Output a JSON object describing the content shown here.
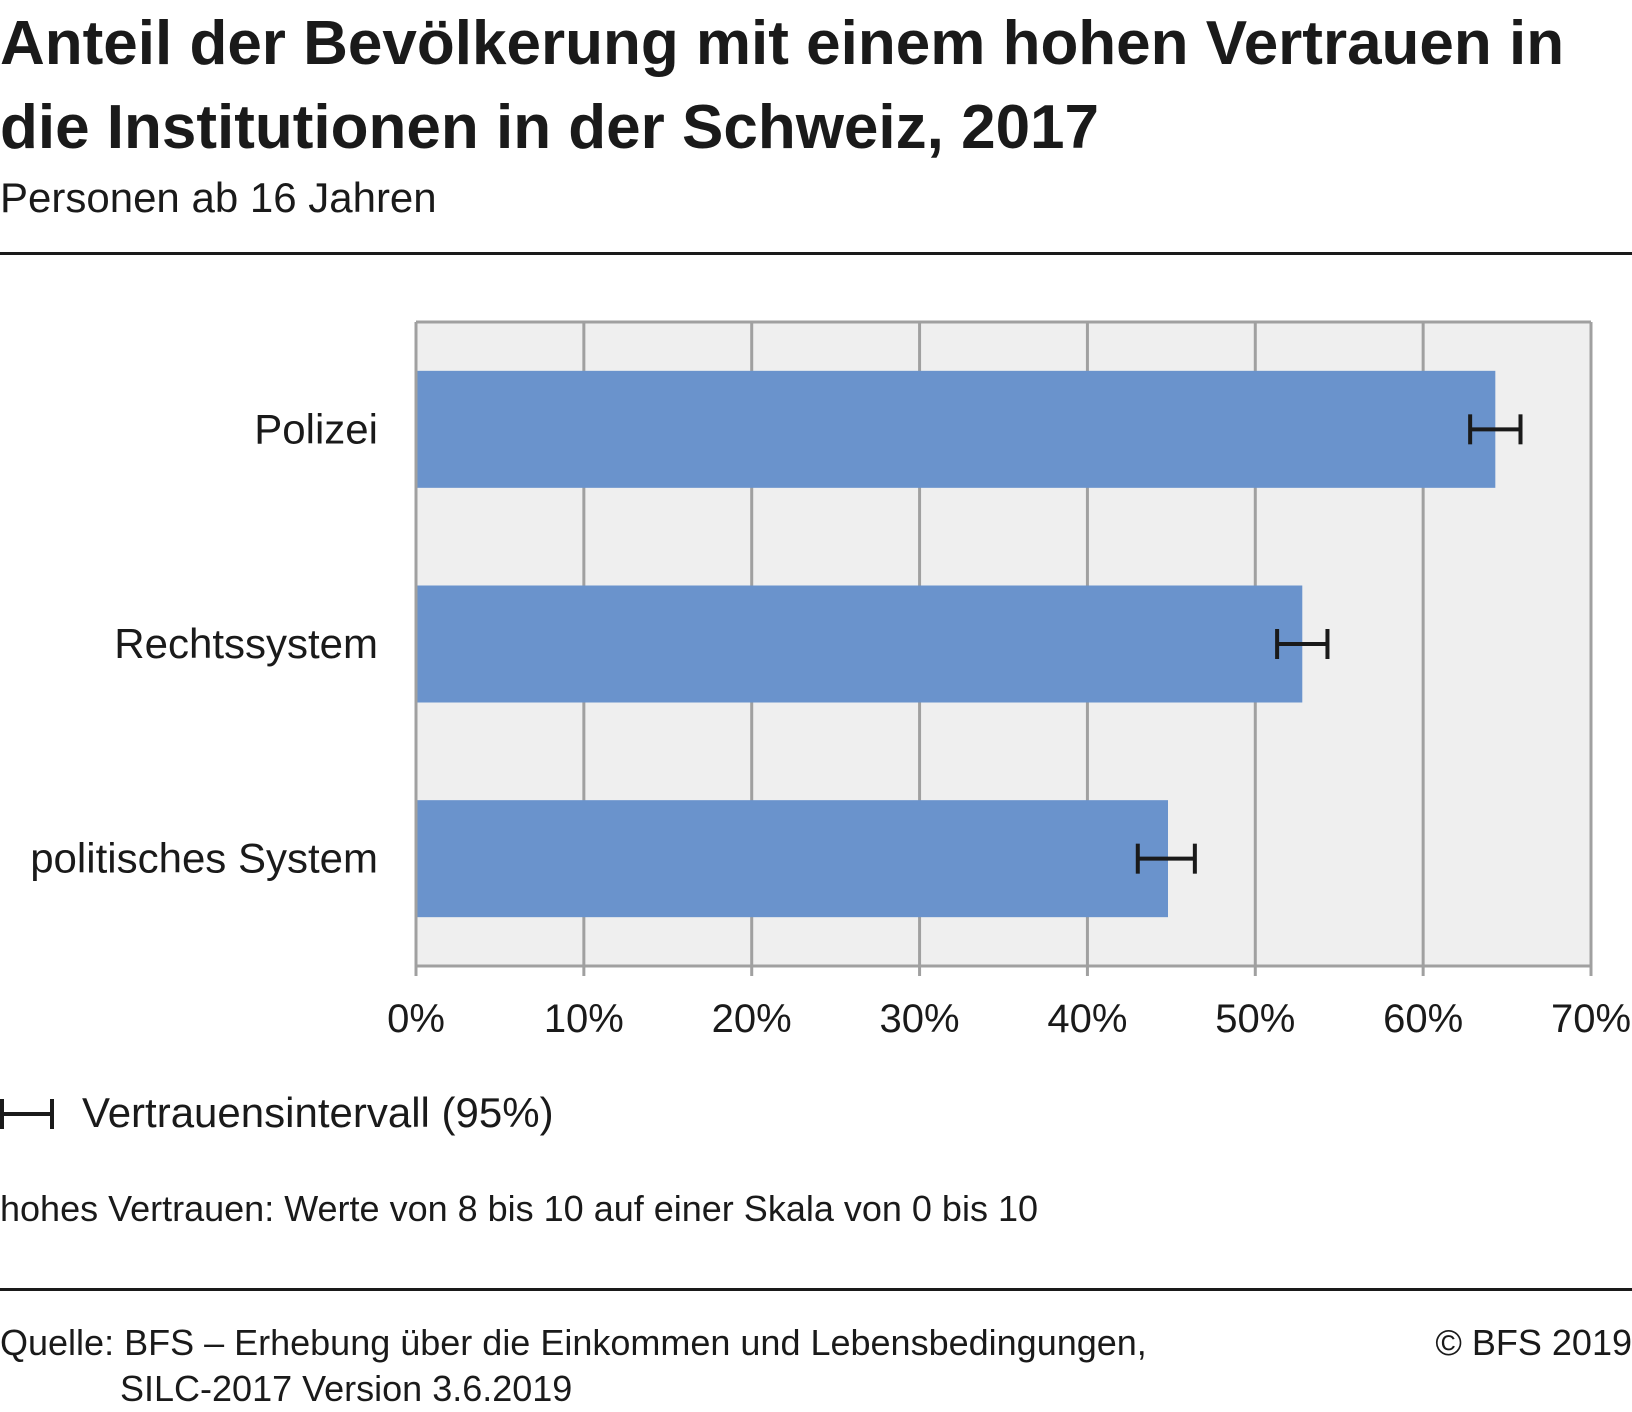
{
  "title": "Anteil der Bevölkerung mit einem hohen Vertrauen in die Institutionen in der Schweiz, 2017",
  "subtitle": "Personen ab 16 Jahren",
  "legend": {
    "label": "Vertrauensintervall (95%)",
    "icon": "error-bar-icon"
  },
  "note": "hohes Vertrauen: Werte von 8 bis 10 auf einer Skala von 0 bis 10",
  "source": {
    "line1": "Quelle: BFS – Erhebung über die Einkommen und Lebensbedingungen,",
    "line2": "SILC-2017 Version 3.6.2019"
  },
  "copyright": "© BFS 2019",
  "colors": {
    "bar": "#6a93cc",
    "plot_bg": "#efefef",
    "grid": "#a0a0a0",
    "text": "#1a1a1a"
  },
  "chart_data": {
    "type": "bar",
    "orientation": "horizontal",
    "title": "Anteil der Bevölkerung mit einem hohen Vertrauen in die Institutionen in der Schweiz, 2017",
    "subtitle": "Personen ab 16 Jahren",
    "categories": [
      "Polizei",
      "Rechtssystem",
      "politisches System"
    ],
    "values": [
      64.3,
      52.8,
      44.8
    ],
    "error_bars": [
      [
        62.8,
        65.8
      ],
      [
        51.3,
        54.3
      ],
      [
        43.0,
        46.4
      ]
    ],
    "xlim": [
      0,
      70
    ],
    "xticks": [
      "0%",
      "10%",
      "20%",
      "30%",
      "40%",
      "50%",
      "60%",
      "70%"
    ],
    "unit": "%",
    "grid": true,
    "legend": "bottom-left"
  }
}
